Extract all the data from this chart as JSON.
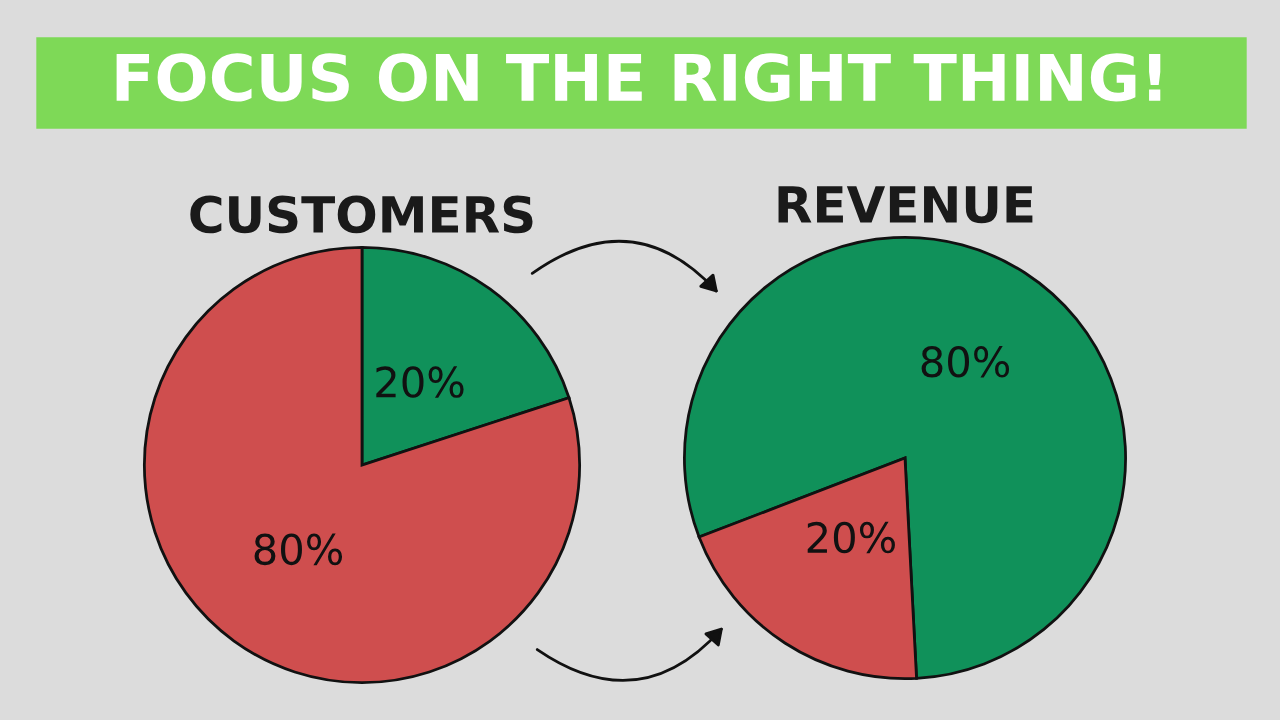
{
  "chart_data": [
    {
      "type": "pie",
      "title": "CUSTOMERS",
      "annotations": [
        "FOCUS ON THE RIGHT THING!"
      ],
      "categories": [
        null,
        null
      ],
      "values": [
        20,
        80
      ],
      "value_labels": [
        "20%",
        "80%"
      ],
      "colors": [
        "#10915a",
        "#cf4e4e"
      ],
      "legend": false
    },
    {
      "type": "pie",
      "title": "REVENUE",
      "categories": [
        null,
        null
      ],
      "values": [
        80,
        20
      ],
      "value_labels": [
        "80%",
        "20%"
      ],
      "colors": [
        "#10915a",
        "#cf4e4e"
      ],
      "legend": false
    }
  ]
}
